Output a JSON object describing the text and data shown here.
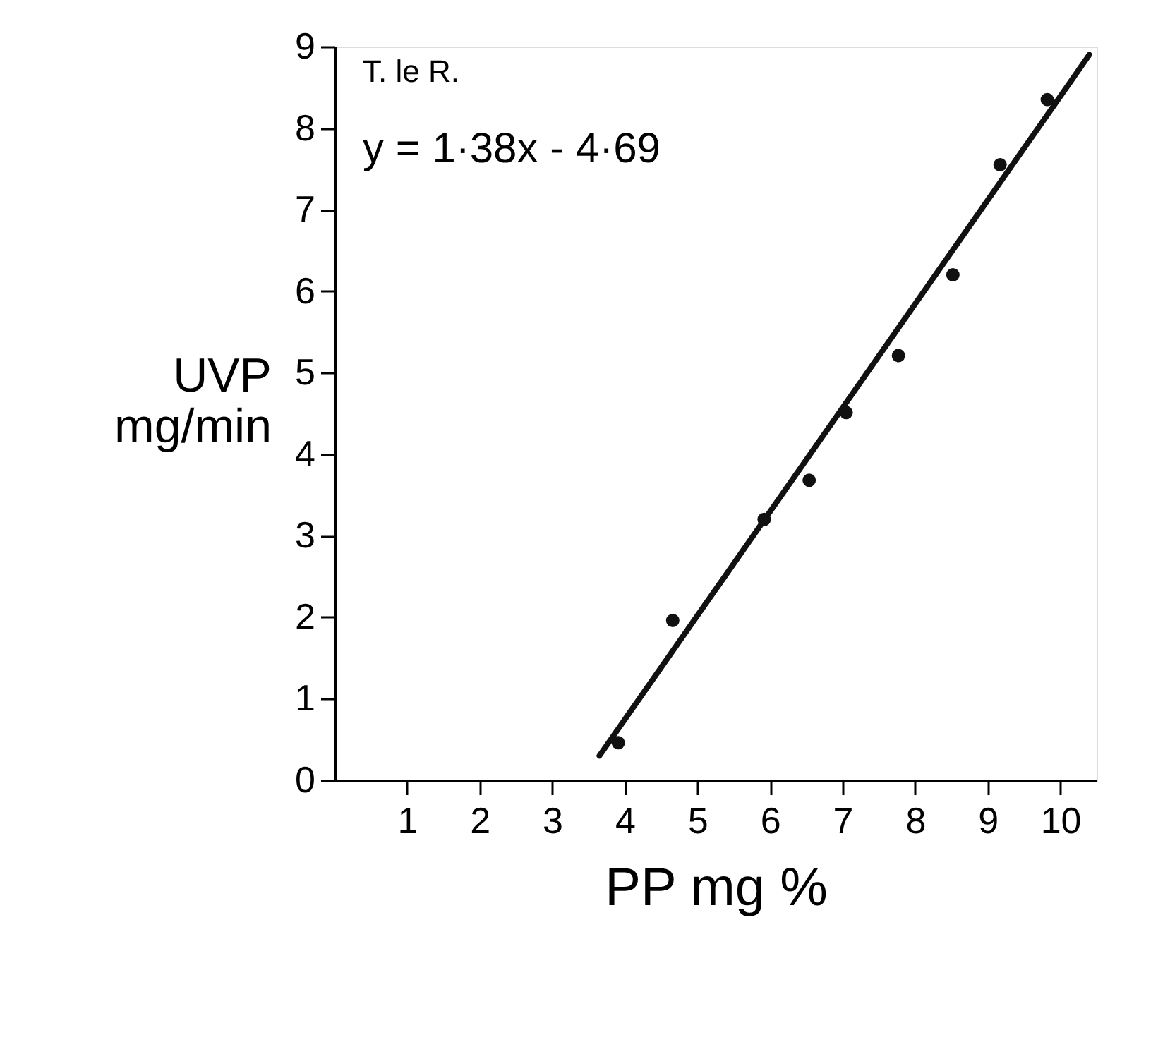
{
  "chart_data": {
    "type": "scatter",
    "xlabel": "PP mg %",
    "ylabel": "UVP mg/min",
    "annotations": [
      "T. le R.",
      "y = 1·38x - 4·69"
    ],
    "xlim": [
      0,
      10.5
    ],
    "xticks": [
      1,
      2,
      3,
      4,
      5,
      6,
      7,
      8,
      9,
      10
    ],
    "ylim": [
      0,
      9
    ],
    "yticks": [
      0,
      1,
      2,
      3,
      4,
      5,
      6,
      7,
      8,
      9
    ],
    "grid": false,
    "marker": "circle",
    "series": [
      {
        "color": "#111111",
        "x": [
          3.91,
          4.66,
          5.92,
          6.54,
          7.05,
          7.77,
          8.52,
          9.17,
          9.82
        ],
        "values": [
          0.46,
          1.96,
          3.2,
          3.68,
          4.51,
          5.21,
          6.2,
          7.55,
          8.35
        ]
      },
      {
        "type": "line",
        "color": "#111111",
        "line_style": "solid",
        "marker": "none",
        "x": [
          3.65,
          10.4
        ],
        "values": [
          0.3,
          8.9
        ]
      }
    ]
  }
}
